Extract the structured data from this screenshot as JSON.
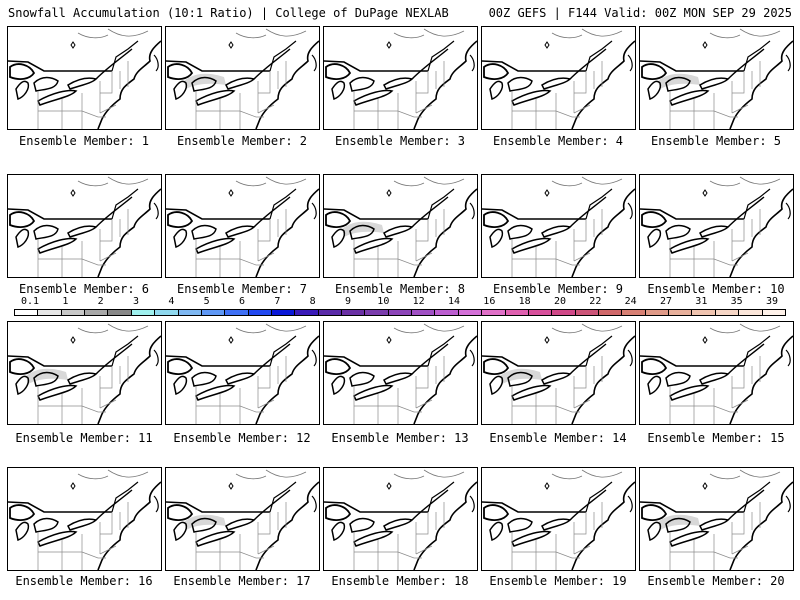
{
  "header": {
    "left": "Snowfall Accumulation (10:1 Ratio) | College of DuPage NEXLAB",
    "right": "00Z GEFS | F144 Valid: 00Z MON SEP 29 2025"
  },
  "caption_prefix": "Ensemble Member: ",
  "members": [
    {
      "number": "1"
    },
    {
      "number": "2"
    },
    {
      "number": "3"
    },
    {
      "number": "4"
    },
    {
      "number": "5"
    },
    {
      "number": "6"
    },
    {
      "number": "7"
    },
    {
      "number": "8"
    },
    {
      "number": "9"
    },
    {
      "number": "10"
    },
    {
      "number": "11"
    },
    {
      "number": "12"
    },
    {
      "number": "13"
    },
    {
      "number": "14"
    },
    {
      "number": "15"
    },
    {
      "number": "16"
    },
    {
      "number": "17"
    },
    {
      "number": "18"
    },
    {
      "number": "19"
    },
    {
      "number": "20"
    }
  ],
  "legend": {
    "labels": [
      "0.1",
      "1",
      "2",
      "3",
      "4",
      "5",
      "6",
      "7",
      "8",
      "9",
      "10",
      "12",
      "14",
      "16",
      "18",
      "20",
      "22",
      "24",
      "27",
      "31",
      "35",
      "39"
    ],
    "colors": [
      "#ffffff",
      "#e6e6e6",
      "#c8c8c8",
      "#a8a8a8",
      "#888888",
      "#9ff0ee",
      "#8fd8ee",
      "#7fb8f2",
      "#5f98f5",
      "#3f70f5",
      "#2248f0",
      "#0a18d8",
      "#3a1ab8",
      "#5a2aa8",
      "#6a30a4",
      "#7a3cac",
      "#8c44b8",
      "#a050c4",
      "#bc5ed0",
      "#d470d8",
      "#e070c8",
      "#e060b0",
      "#d8509c",
      "#d04888",
      "#cc5478",
      "#d0686a",
      "#d88074",
      "#e09a88",
      "#e8b09c",
      "#f0c4b0",
      "#f6d6c6",
      "#fbe6da",
      "#fff2ea"
    ]
  },
  "map_style": {
    "coast_color": "#000000",
    "border_color": "#000000",
    "state_color": "#8c8c8c",
    "snow_color": "#d8d8d8"
  }
}
